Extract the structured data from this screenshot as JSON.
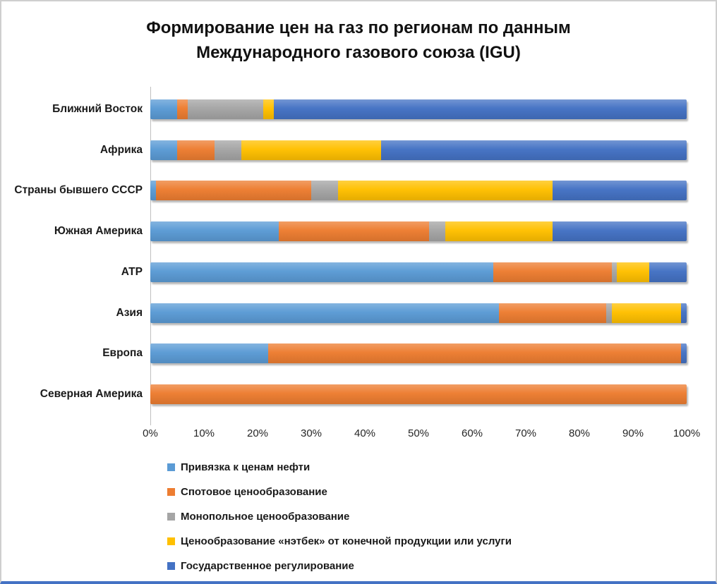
{
  "title": {
    "line1": "Формирование цен на газ по регионам по данным",
    "line2": "Международного газового союза (IGU)"
  },
  "colors": {
    "oil_linked": "#5B9BD5",
    "spot": "#ED7D31",
    "monopoly": "#A5A5A5",
    "netback": "#FFC000",
    "state_regulation": "#4472C4",
    "axis_line": "#bfbfbf",
    "frame_bottom_bar": "#4472C4"
  },
  "chart_data": {
    "type": "bar",
    "orientation": "horizontal",
    "stacked": true,
    "title": "Формирование цен на газ по регионам по данным Международного газового союза (IGU)",
    "categories": [
      "Ближний Восток",
      "Африка",
      "Страны бывшего СССР",
      "Южная Америка",
      "АТР",
      "Азия",
      "Европа",
      "Северная Америка"
    ],
    "series": [
      {
        "name": "Привязка к ценам нефти",
        "color": "#5B9BD5",
        "values": [
          5,
          5,
          1,
          24,
          64,
          65,
          22,
          0
        ]
      },
      {
        "name": "Спотовое ценообразование",
        "color": "#ED7D31",
        "values": [
          2,
          7,
          29,
          28,
          22,
          20,
          77,
          100
        ]
      },
      {
        "name": "Монопольное ценообразование",
        "color": "#A5A5A5",
        "values": [
          14,
          5,
          5,
          3,
          1,
          1,
          0,
          0
        ]
      },
      {
        "name": "Ценообразование «нэтбек» от конечной продукции или услуги",
        "color": "#FFC000",
        "values": [
          2,
          26,
          40,
          20,
          6,
          13,
          0,
          0
        ]
      },
      {
        "name": "Государственное регулирование",
        "color": "#4472C4",
        "values": [
          77,
          57,
          25,
          25,
          7,
          1,
          1,
          0
        ]
      }
    ],
    "x_ticks": [
      "0%",
      "10%",
      "20%",
      "30%",
      "40%",
      "50%",
      "60%",
      "70%",
      "80%",
      "90%",
      "100%"
    ],
    "xlim": [
      0,
      100
    ],
    "grid": false,
    "legend_position": "bottom-left"
  }
}
